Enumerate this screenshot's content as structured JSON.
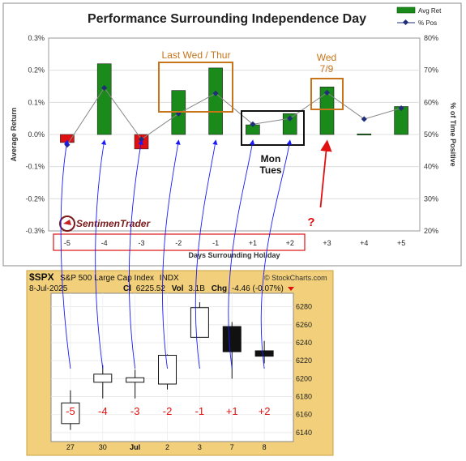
{
  "chart_data": [
    {
      "type": "bar",
      "title": "Performance Surrounding Independence Day",
      "xlabel": "Days Surrounding Holiday",
      "ylabel": "Average Return",
      "y2label": "% of Time Positive",
      "categories": [
        "-5",
        "-4",
        "-3",
        "-2",
        "-1",
        "+1",
        "+2",
        "+3",
        "+4",
        "+5"
      ],
      "ylim": [
        -0.3,
        0.3
      ],
      "y_ticks": [
        "0.3%",
        "0.2%",
        "0.1%",
        "0.0%",
        "-0.1%",
        "-0.2%",
        "-0.3%"
      ],
      "y2lim": [
        20,
        80
      ],
      "y2_ticks": [
        "80%",
        "70%",
        "60%",
        "50%",
        "40%",
        "30%",
        "20%"
      ],
      "grid": true,
      "legend_position": "top-right",
      "series": [
        {
          "name": "Avg Ret",
          "type": "bar",
          "values": [
            -0.025,
            0.22,
            -0.045,
            0.137,
            0.207,
            0.03,
            0.065,
            0.148,
            0.002,
            0.087
          ],
          "color_up": "#1a8a1a",
          "color_down": "#e01010"
        },
        {
          "name": "% Pos",
          "type": "line",
          "axis": "secondary",
          "values": [
            46.8,
            64.5,
            48.5,
            56.5,
            62.8,
            53.2,
            55.0,
            63.0,
            54.8,
            58.2
          ],
          "color": "#1f2d7a"
        }
      ],
      "annotations": {
        "last_wed_thur": "Last Wed / Thur",
        "mon_tues": "Mon\nTues",
        "wed_79": "Wed\n7/9",
        "question": "?"
      },
      "brand": "SentimenTrader"
    },
    {
      "type": "candlestick",
      "symbol": "$SPX",
      "name": "S&P 500 Large Cap Index",
      "exchange": "INDX",
      "date": "8-Jul-2025",
      "close_label": "Cl",
      "close": "6225.52",
      "volume_label": "Vol",
      "volume": "3.1B",
      "change_label": "Chg",
      "change": "-4.46 (-0.07%)",
      "watermark": "© StockCharts.com",
      "x_labels": [
        "27",
        "30",
        "Jul",
        "2",
        "3",
        "7",
        "8"
      ],
      "ylim": [
        6130,
        6295
      ],
      "y_ticks": [
        6280,
        6260,
        6240,
        6220,
        6200,
        6180,
        6160,
        6140
      ],
      "candles": [
        {
          "x": "27",
          "open": 6150,
          "high": 6187,
          "low": 6143,
          "close": 6173,
          "label": "-5"
        },
        {
          "x": "30",
          "open": 6196,
          "high": 6215,
          "low": 6178,
          "close": 6205,
          "label": "-4"
        },
        {
          "x": "Jul",
          "open": 6196,
          "high": 6210,
          "low": 6178,
          "close": 6201,
          "label": "-3"
        },
        {
          "x": "2",
          "open": 6194,
          "high": 6227,
          "low": 6188,
          "close": 6226,
          "label": "-2"
        },
        {
          "x": "3",
          "open": 6246,
          "high": 6285,
          "low": 6246,
          "close": 6279,
          "label": "-1"
        },
        {
          "x": "7",
          "open": 6258,
          "high": 6263,
          "low": 6200,
          "close": 6230,
          "label": "+1"
        },
        {
          "x": "8",
          "open": 6231,
          "high": 6242,
          "low": 6217,
          "close": 6225,
          "label": "+2"
        }
      ]
    }
  ]
}
